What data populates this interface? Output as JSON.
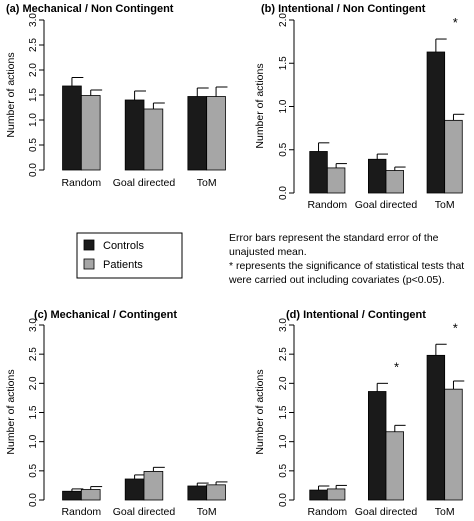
{
  "colors": {
    "controls": "#1a1a1a",
    "patients": "#a6a6a6",
    "axis": "#000000"
  },
  "legend": {
    "entries": [
      {
        "label": "Controls",
        "color": "#1a1a1a"
      },
      {
        "label": "Patients",
        "color": "#a6a6a6"
      }
    ]
  },
  "note": {
    "lines": [
      "Error bars represent the standard error of the",
      "unajusted mean.",
      "* represents the significance of statistical tests that",
      "were carried out including covariates  (p<0.05)."
    ]
  },
  "chart_data": [
    {
      "type": "bar",
      "title": "(a) Mechanical / Non Contingent",
      "categories": [
        "Random",
        "Goal directed",
        "ToM"
      ],
      "ylabel": "Number of actions",
      "ylim": [
        0,
        3.0
      ],
      "yticks": [
        "0.0",
        "0.5",
        "1.0",
        "1.5",
        "2.0",
        "2.5",
        "3.0"
      ],
      "series": [
        {
          "name": "Controls",
          "values": [
            1.68,
            1.4,
            1.47
          ],
          "errors": [
            0.17,
            0.18,
            0.17
          ]
        },
        {
          "name": "Patients",
          "values": [
            1.49,
            1.22,
            1.47
          ],
          "errors": [
            0.11,
            0.12,
            0.19
          ]
        }
      ],
      "significance": []
    },
    {
      "type": "bar",
      "title": "(b) Intentional / Non Contingent",
      "categories": [
        "Random",
        "Goal directed",
        "ToM"
      ],
      "ylabel": "Number of actions",
      "ylim": [
        0,
        2.0
      ],
      "yticks": [
        "0.0",
        "0.5",
        "1.0",
        "1.5",
        "2.0"
      ],
      "series": [
        {
          "name": "Controls",
          "values": [
            0.48,
            0.39,
            1.63
          ],
          "errors": [
            0.1,
            0.06,
            0.15
          ]
        },
        {
          "name": "Patients",
          "values": [
            0.29,
            0.26,
            0.84
          ],
          "errors": [
            0.05,
            0.04,
            0.07
          ]
        }
      ],
      "significance": [
        "",
        "",
        "*"
      ]
    },
    {
      "type": "bar",
      "title": "(c) Mechanical / Contingent",
      "categories": [
        "Random",
        "Goal directed",
        "ToM"
      ],
      "ylabel": "Number of actions",
      "ylim": [
        0,
        3.0
      ],
      "yticks": [
        "0.0",
        "0.5",
        "1.0",
        "1.5",
        "2.0",
        "2.5",
        "3.0"
      ],
      "series": [
        {
          "name": "Controls",
          "values": [
            0.15,
            0.36,
            0.24
          ],
          "errors": [
            0.04,
            0.07,
            0.05
          ]
        },
        {
          "name": "Patients",
          "values": [
            0.18,
            0.49,
            0.26
          ],
          "errors": [
            0.05,
            0.07,
            0.05
          ]
        }
      ],
      "significance": []
    },
    {
      "type": "bar",
      "title": "(d) Intentional / Contingent",
      "categories": [
        "Random",
        "Goal directed",
        "ToM"
      ],
      "ylabel": "Number of actions",
      "ylim": [
        0,
        3.0
      ],
      "yticks": [
        "0.0",
        "0.5",
        "1.0",
        "1.5",
        "2.0",
        "2.5",
        "3.0"
      ],
      "series": [
        {
          "name": "Controls",
          "values": [
            0.17,
            1.86,
            2.48
          ],
          "errors": [
            0.07,
            0.14,
            0.19
          ]
        },
        {
          "name": "Patients",
          "values": [
            0.19,
            1.17,
            1.9
          ],
          "errors": [
            0.06,
            0.11,
            0.14
          ]
        }
      ],
      "significance": [
        "",
        "*",
        "*"
      ]
    }
  ]
}
